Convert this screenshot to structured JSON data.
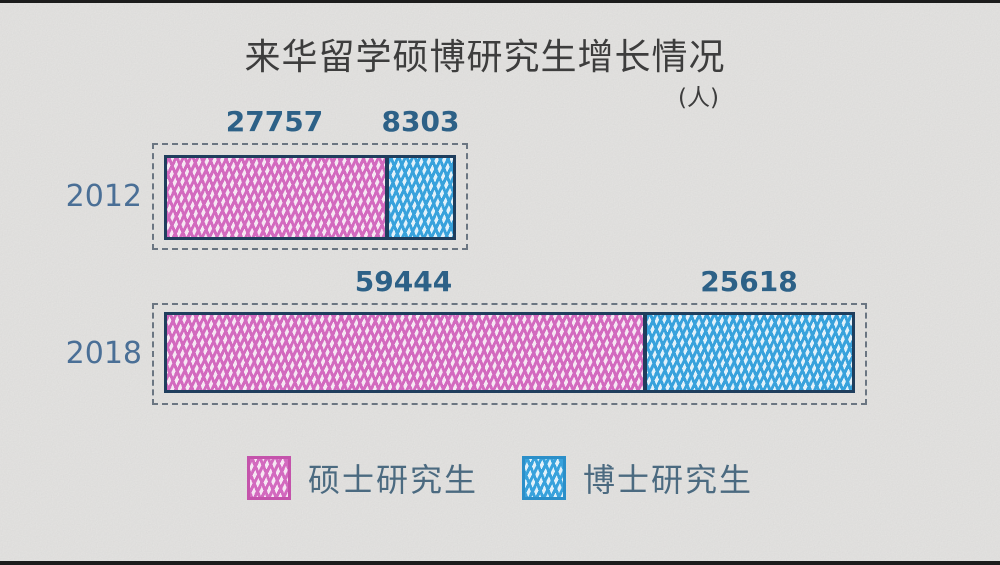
{
  "title": "来华留学硕博研究生增长情况",
  "unit": "(人)",
  "chart_data": {
    "type": "bar",
    "orientation": "horizontal",
    "stacked": true,
    "style": "hand-drawn crayon hatching on paper",
    "categories": [
      "2012",
      "2018"
    ],
    "series": [
      {
        "name": "硕士研究生",
        "color": "#d36abf",
        "values": [
          27757,
          59444
        ]
      },
      {
        "name": "博士研究生",
        "color": "#38a2dc",
        "values": [
          8303,
          25618
        ]
      }
    ],
    "totals": [
      36060,
      85062
    ],
    "value_labels": "above each segment",
    "legend_position": "bottom",
    "grid": false,
    "axes": "none (dashed frame around each bar)"
  },
  "legend": {
    "items": [
      {
        "label": "硕士研究生",
        "swatch_color": "#d36abf"
      },
      {
        "label": "博士研究生",
        "swatch_color": "#38a2dc"
      }
    ]
  },
  "colors": {
    "paper": "#e9e8e6",
    "title": "#3d3d3d",
    "year_label": "#4a6f96",
    "value_label": "#2d6187",
    "bar_border": "#1f3e5d",
    "frame_dash": "#6b7682",
    "legend_text": "#4b6a80",
    "series_0": "#d36abf",
    "series_1": "#38a2dc"
  }
}
